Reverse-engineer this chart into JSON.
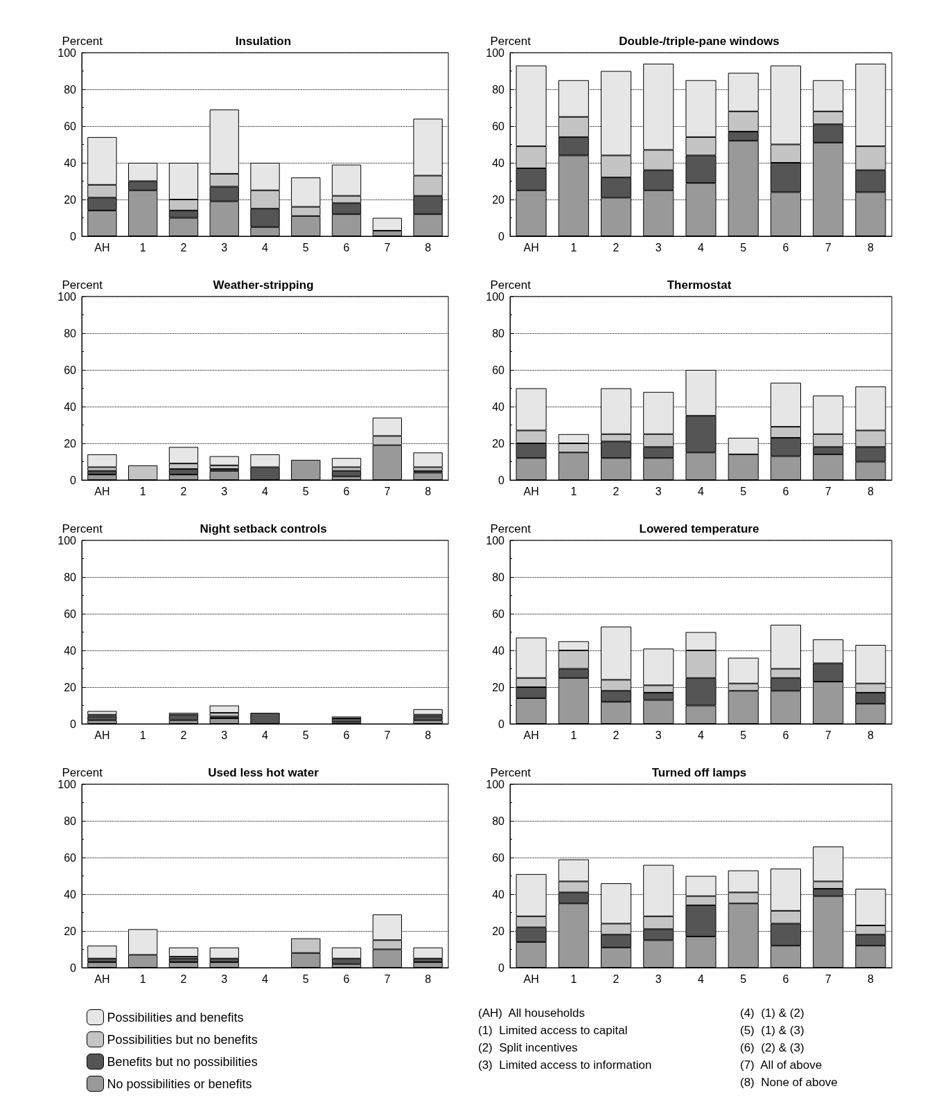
{
  "chart_data": [
    {
      "type": "bar",
      "title": "Insulation",
      "ylabel": "Percent",
      "categories": [
        "AH",
        "1",
        "2",
        "3",
        "4",
        "5",
        "6",
        "7",
        "8"
      ],
      "stacked": true,
      "ylim": [
        0,
        100
      ],
      "yticks": [
        0,
        20,
        40,
        60,
        80,
        100
      ],
      "grid": "y",
      "line_style": "dotted",
      "legend": false,
      "series": [
        {
          "color": "#999999",
          "values": [
            14,
            25,
            10,
            19,
            5,
            11,
            12,
            3,
            12
          ]
        },
        {
          "color": "#555555",
          "values": [
            7,
            5,
            4,
            8,
            10,
            0,
            6,
            0,
            10
          ]
        },
        {
          "color": "#c4c4c4",
          "values": [
            7,
            0,
            6,
            7,
            10,
            5,
            4,
            0,
            11
          ]
        },
        {
          "color": "#e6e6e6",
          "values": [
            26,
            10,
            20,
            35,
            15,
            16,
            17,
            7,
            31
          ]
        }
      ]
    },
    {
      "type": "bar",
      "title": "Double-/triple-pane windows",
      "ylabel": "Percent",
      "categories": [
        "AH",
        "1",
        "2",
        "3",
        "4",
        "5",
        "6",
        "7",
        "8"
      ],
      "stacked": true,
      "ylim": [
        0,
        100
      ],
      "yticks": [
        0,
        20,
        40,
        60,
        80,
        100
      ],
      "grid": "y",
      "line_style": "dotted",
      "legend": false,
      "series": [
        {
          "color": "#999999",
          "values": [
            25,
            44,
            21,
            25,
            29,
            52,
            24,
            51,
            24
          ]
        },
        {
          "color": "#555555",
          "values": [
            12,
            10,
            11,
            11,
            15,
            5,
            16,
            10,
            12
          ]
        },
        {
          "color": "#c4c4c4",
          "values": [
            12,
            11,
            12,
            11,
            10,
            11,
            10,
            7,
            13
          ]
        },
        {
          "color": "#e6e6e6",
          "values": [
            44,
            20,
            46,
            47,
            31,
            21,
            43,
            17,
            45
          ]
        }
      ]
    },
    {
      "type": "bar",
      "title": "Weather-stripping",
      "ylabel": "Percent",
      "categories": [
        "AH",
        "1",
        "2",
        "3",
        "4",
        "5",
        "6",
        "7",
        "8"
      ],
      "stacked": true,
      "ylim": [
        0,
        100
      ],
      "yticks": [
        0,
        20,
        40,
        60,
        80,
        100
      ],
      "grid": "y",
      "line_style": "dotted",
      "legend": false,
      "series": [
        {
          "color": "#999999",
          "values": [
            3,
            0,
            3,
            5,
            0,
            11,
            2,
            19,
            4
          ]
        },
        {
          "color": "#555555",
          "values": [
            2,
            0,
            3,
            1,
            7,
            0,
            3,
            0,
            1
          ]
        },
        {
          "color": "#c4c4c4",
          "values": [
            2,
            8,
            3,
            2,
            0,
            0,
            2,
            5,
            2
          ]
        },
        {
          "color": "#e6e6e6",
          "values": [
            7,
            0,
            9,
            5,
            7,
            0,
            5,
            10,
            8
          ]
        }
      ]
    },
    {
      "type": "bar",
      "title": "Thermostat",
      "ylabel": "Percent",
      "categories": [
        "AH",
        "1",
        "2",
        "3",
        "4",
        "5",
        "6",
        "7",
        "8"
      ],
      "stacked": true,
      "ylim": [
        0,
        100
      ],
      "yticks": [
        0,
        20,
        40,
        60,
        80,
        100
      ],
      "grid": "y",
      "line_style": "dotted",
      "legend": false,
      "series": [
        {
          "color": "#999999",
          "values": [
            12,
            15,
            12,
            12,
            15,
            14,
            13,
            14,
            10
          ]
        },
        {
          "color": "#555555",
          "values": [
            8,
            0,
            9,
            6,
            20,
            0,
            10,
            4,
            8
          ]
        },
        {
          "color": "#c4c4c4",
          "values": [
            7,
            5,
            4,
            7,
            0,
            0,
            6,
            7,
            9
          ]
        },
        {
          "color": "#e6e6e6",
          "values": [
            23,
            5,
            25,
            23,
            25,
            9,
            24,
            21,
            24
          ]
        }
      ]
    },
    {
      "type": "bar",
      "title": "Night setback controls",
      "ylabel": "Percent",
      "categories": [
        "AH",
        "1",
        "2",
        "3",
        "4",
        "5",
        "6",
        "7",
        "8"
      ],
      "stacked": true,
      "ylim": [
        0,
        100
      ],
      "yticks": [
        0,
        20,
        40,
        60,
        80,
        100
      ],
      "grid": "y",
      "line_style": "dotted",
      "legend": false,
      "series": [
        {
          "color": "#999999",
          "values": [
            2,
            0,
            2,
            3,
            0,
            0,
            1,
            0,
            2
          ]
        },
        {
          "color": "#555555",
          "values": [
            2,
            0,
            3,
            1,
            6,
            0,
            2,
            0,
            2
          ]
        },
        {
          "color": "#c4c4c4",
          "values": [
            1,
            0,
            0,
            2,
            0,
            0,
            0,
            0,
            1
          ]
        },
        {
          "color": "#e6e6e6",
          "values": [
            2,
            0,
            1,
            4,
            0,
            0,
            1,
            0,
            3
          ]
        }
      ]
    },
    {
      "type": "bar",
      "title": "Lowered temperature",
      "ylabel": "Percent",
      "categories": [
        "AH",
        "1",
        "2",
        "3",
        "4",
        "5",
        "6",
        "7",
        "8"
      ],
      "stacked": true,
      "ylim": [
        0,
        100
      ],
      "yticks": [
        0,
        20,
        40,
        60,
        80,
        100
      ],
      "grid": "y",
      "line_style": "dotted",
      "legend": false,
      "series": [
        {
          "color": "#999999",
          "values": [
            14,
            25,
            12,
            13,
            10,
            18,
            18,
            23,
            11
          ]
        },
        {
          "color": "#555555",
          "values": [
            6,
            5,
            6,
            4,
            15,
            0,
            7,
            10,
            6
          ]
        },
        {
          "color": "#c4c4c4",
          "values": [
            5,
            10,
            6,
            4,
            15,
            4,
            5,
            0,
            5
          ]
        },
        {
          "color": "#e6e6e6",
          "values": [
            22,
            5,
            29,
            20,
            10,
            14,
            24,
            13,
            21
          ]
        }
      ]
    },
    {
      "type": "bar",
      "title": "Used less hot water",
      "ylabel": "Percent",
      "categories": [
        "AH",
        "1",
        "2",
        "3",
        "4",
        "5",
        "6",
        "7",
        "8"
      ],
      "stacked": true,
      "ylim": [
        0,
        100
      ],
      "yticks": [
        0,
        20,
        40,
        60,
        80,
        100
      ],
      "grid": "y",
      "line_style": "dotted",
      "legend": "bottom",
      "series": [
        {
          "name": "No possibilities or benefits",
          "color": "#999999",
          "values": [
            3,
            7,
            3,
            3,
            0,
            8,
            2,
            10,
            3
          ]
        },
        {
          "name": "Benefits but no possibilities",
          "color": "#555555",
          "values": [
            2,
            0,
            2,
            2,
            0,
            0,
            3,
            0,
            2
          ]
        },
        {
          "name": "Possibilities but no benefits",
          "color": "#c4c4c4",
          "values": [
            0,
            0,
            1,
            0,
            0,
            8,
            0,
            5,
            0
          ]
        },
        {
          "name": "Possibilities and benefits",
          "color": "#e6e6e6",
          "values": [
            7,
            14,
            5,
            6,
            0,
            0,
            6,
            14,
            6
          ]
        }
      ]
    },
    {
      "type": "bar",
      "title": "Turned off lamps",
      "ylabel": "Percent",
      "categories": [
        "AH",
        "1",
        "2",
        "3",
        "4",
        "5",
        "6",
        "7",
        "8"
      ],
      "stacked": true,
      "ylim": [
        0,
        100
      ],
      "yticks": [
        0,
        20,
        40,
        60,
        80,
        100
      ],
      "grid": "y",
      "line_style": "dotted",
      "legend": false,
      "annotations": [
        "(AH)  All households",
        "(1)  Limited access to capital",
        "(2)  Split incentives",
        "(3)  Limited access to information",
        "(4)  (1) & (2)",
        "(5)  (1) & (3)",
        "(6)  (2) & (3)",
        "(7)  All of above",
        "(8)  None of above"
      ],
      "series": [
        {
          "color": "#999999",
          "values": [
            14,
            35,
            11,
            15,
            17,
            35,
            12,
            39,
            12
          ]
        },
        {
          "color": "#555555",
          "values": [
            8,
            6,
            7,
            6,
            17,
            0,
            12,
            4,
            6
          ]
        },
        {
          "color": "#c4c4c4",
          "values": [
            6,
            6,
            6,
            7,
            5,
            6,
            7,
            4,
            5
          ]
        },
        {
          "color": "#e6e6e6",
          "values": [
            23,
            12,
            22,
            28,
            11,
            12,
            23,
            19,
            20
          ]
        }
      ]
    }
  ]
}
